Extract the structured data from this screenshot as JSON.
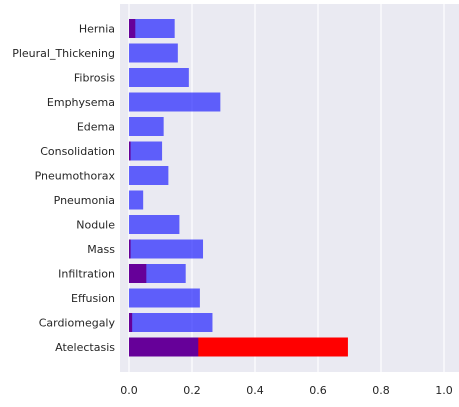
{
  "colors": {
    "plot_background": "#eaeaf2",
    "grid": "#ffffff",
    "series_red": "#ff0000",
    "series_blue": "#4d4dff"
  },
  "chart_data": {
    "type": "bar",
    "orientation": "horizontal",
    "title": "",
    "xlabel": "",
    "ylabel": "",
    "xlim": [
      0,
      1.0
    ],
    "xticks": [
      0.0,
      0.2,
      0.4,
      0.6,
      0.8,
      1.0
    ],
    "xtick_labels": [
      "0.0",
      "0.2",
      "0.4",
      "0.6",
      "0.8",
      "1.0"
    ],
    "grid": true,
    "legend": "none",
    "categories": [
      "Atelectasis",
      "Cardiomegaly",
      "Effusion",
      "Infiltration",
      "Mass",
      "Nodule",
      "Pneumonia",
      "Pneumothorax",
      "Consolidation",
      "Edema",
      "Emphysema",
      "Fibrosis",
      "Pleural_Thickening",
      "Hernia"
    ],
    "series": [
      {
        "color": "#ff0000",
        "opacity": 1.0,
        "values": [
          0.695,
          0.01,
          0.0,
          0.055,
          0.005,
          0.0,
          0.0,
          0.0,
          0.005,
          0.0,
          0.0,
          0.0,
          0.0,
          0.02
        ]
      },
      {
        "color": "#0000ff",
        "opacity": 0.6,
        "values": [
          0.22,
          0.265,
          0.225,
          0.18,
          0.235,
          0.16,
          0.045,
          0.125,
          0.105,
          0.11,
          0.29,
          0.19,
          0.155,
          0.145
        ]
      }
    ]
  }
}
